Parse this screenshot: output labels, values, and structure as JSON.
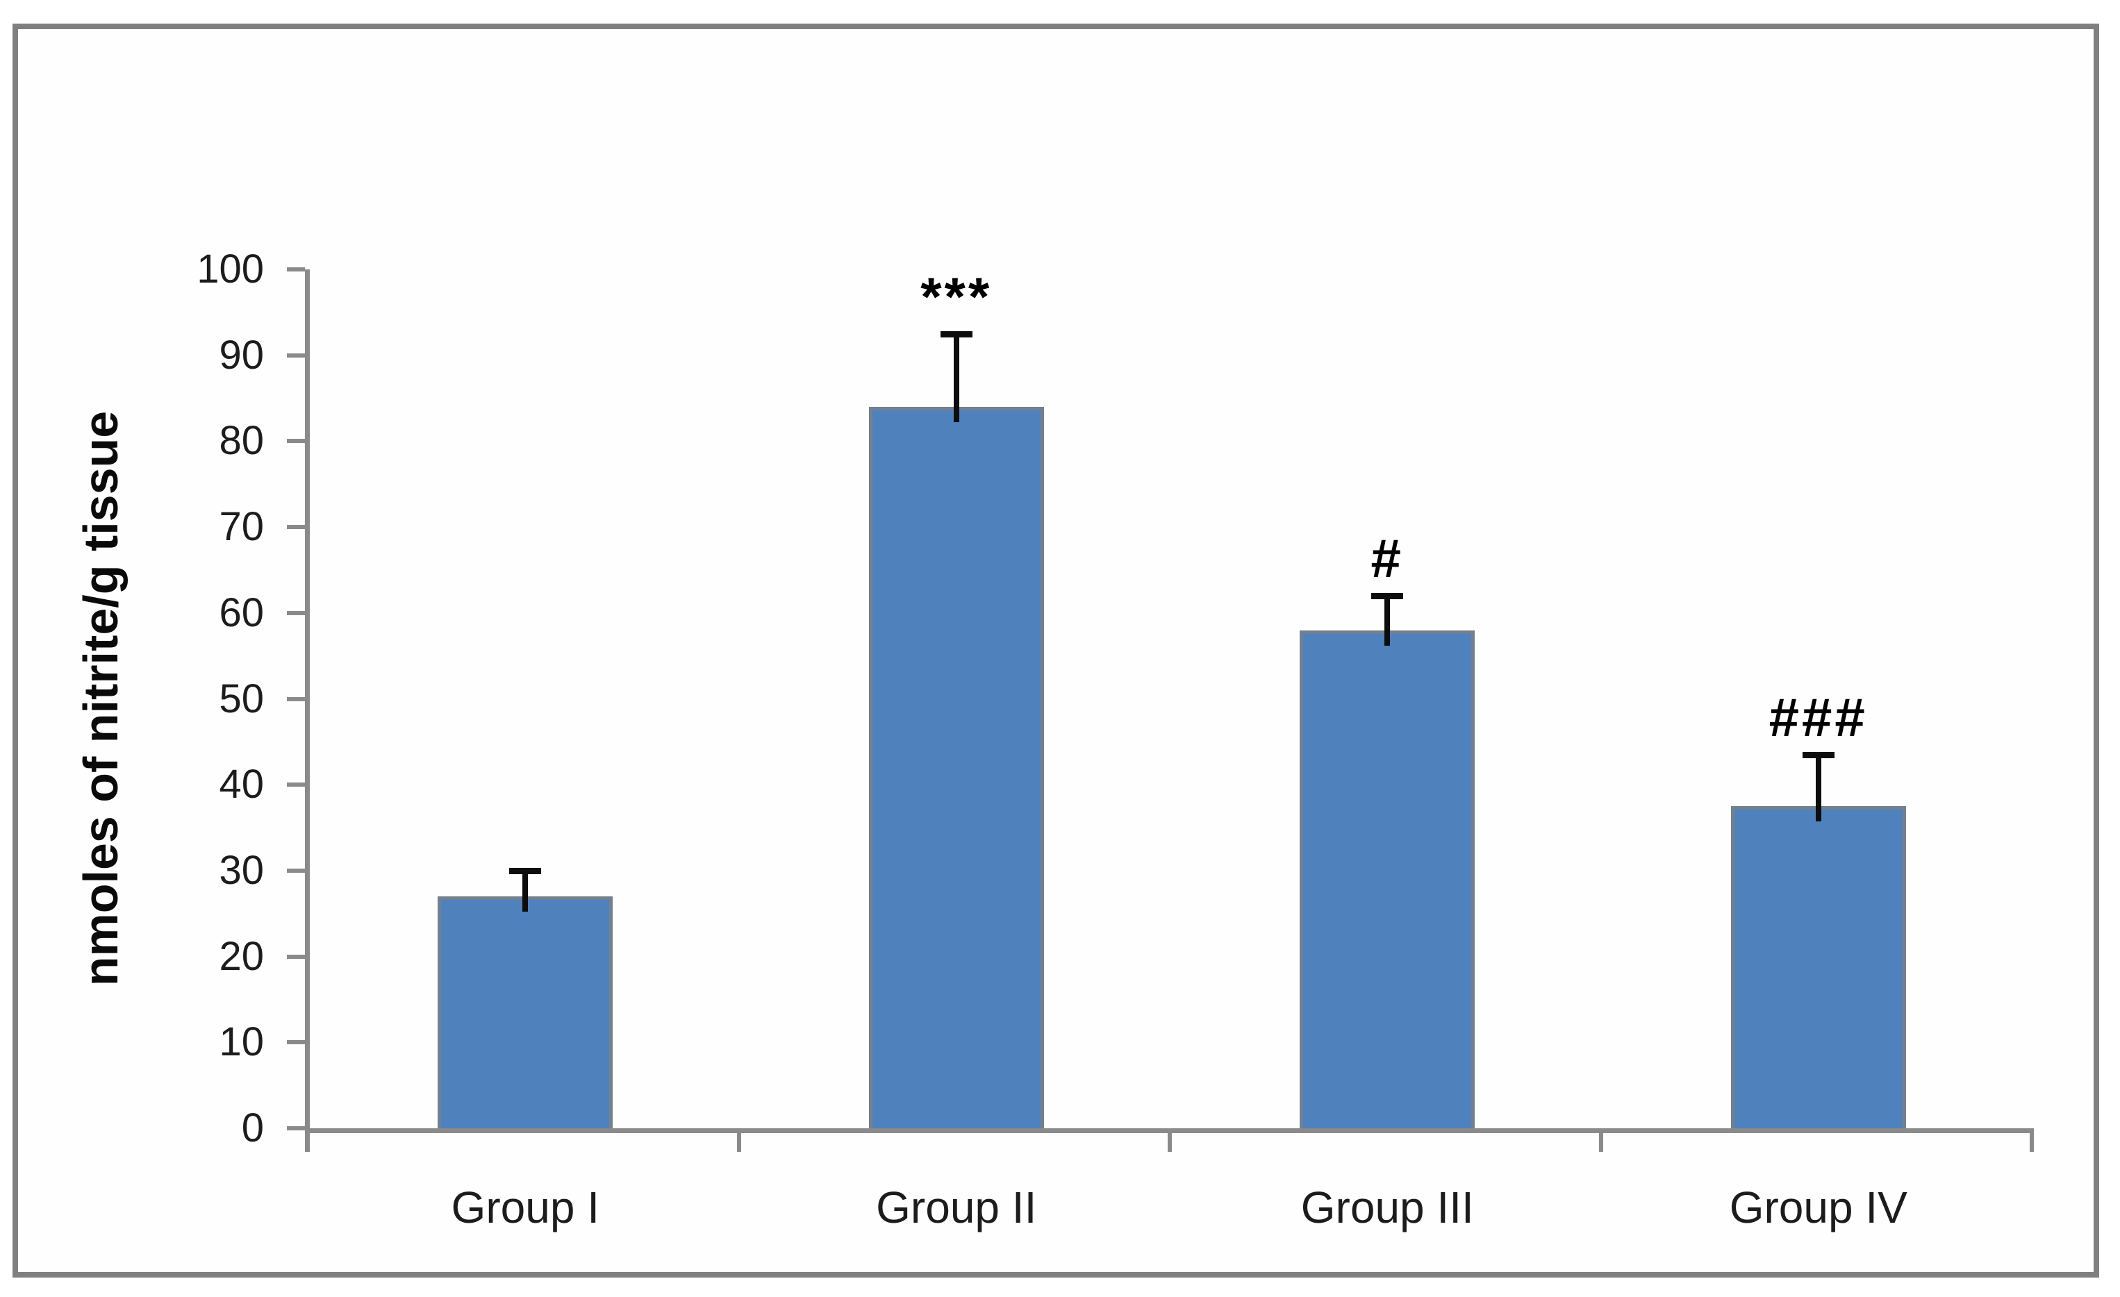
{
  "chart_data": {
    "type": "bar",
    "title": "",
    "xlabel": "",
    "ylabel": "nmoles of nitrite/g tissue",
    "categories": [
      "Group I",
      "Group II",
      "Group III",
      "Group IV"
    ],
    "values": [
      27,
      84,
      58,
      37.5
    ],
    "error_up": [
      3,
      8.5,
      4,
      6
    ],
    "annotations": [
      "",
      "***",
      "#",
      "###"
    ],
    "ylim": [
      0,
      100
    ],
    "y_ticks": [
      0,
      10,
      20,
      30,
      40,
      50,
      60,
      70,
      80,
      90,
      100
    ],
    "grid": "off",
    "legend": "none",
    "bar_color": "#4f81bd",
    "bar_edge_color": "#72808f",
    "axis_color": "#8a8a8a",
    "error_bar_color": "#0d0d0d",
    "text_color": "#1c1c1c",
    "frame_color": "#7f7f7f"
  }
}
